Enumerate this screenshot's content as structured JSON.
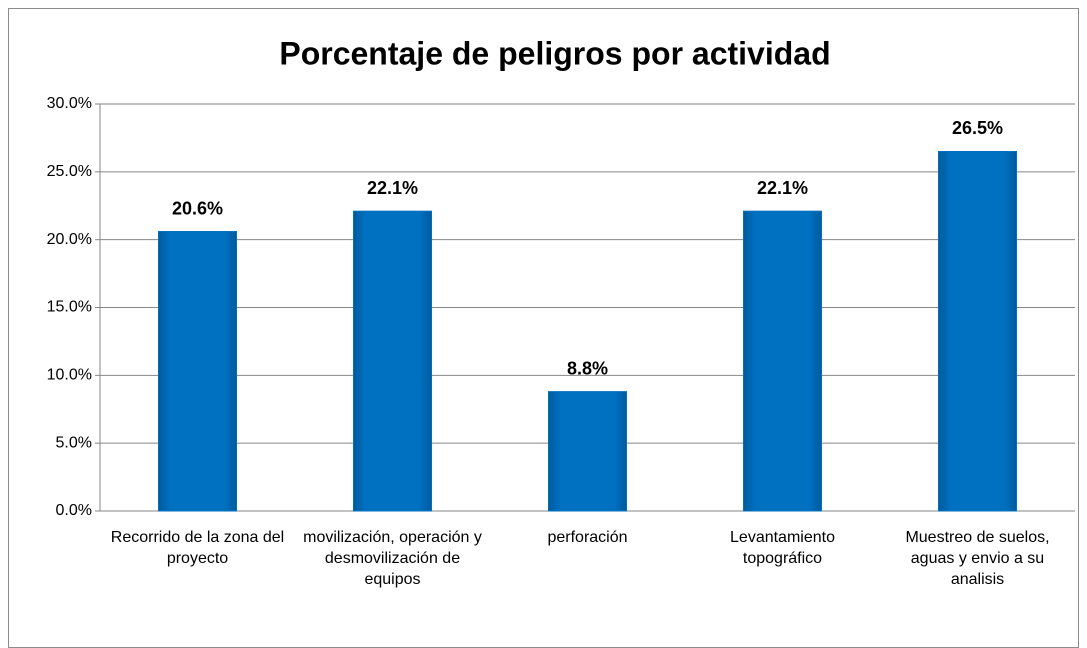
{
  "chart_data": {
    "type": "bar",
    "title": "Porcentaje de peligros por actividad",
    "categories": [
      "Recorrido de la zona del proyecto",
      "movilización, operación y desmovilización de equipos",
      "perforación",
      "Levantamiento topográfico",
      "Muestreo de suelos, aguas y envio a su analisis"
    ],
    "values": [
      20.6,
      22.1,
      8.8,
      22.1,
      26.5
    ],
    "value_labels": [
      "20.6%",
      "22.1%",
      "8.8%",
      "22.1%",
      "26.5%"
    ],
    "color": "#0070c0",
    "ylim": [
      0,
      30
    ],
    "yticks": [
      {
        "value": 0,
        "label": "0.0%"
      },
      {
        "value": 5,
        "label": "5.0%"
      },
      {
        "value": 10,
        "label": "10.0%"
      },
      {
        "value": 15,
        "label": "15.0%"
      },
      {
        "value": 20,
        "label": "20.0%"
      },
      {
        "value": 25,
        "label": "25.0%"
      },
      {
        "value": 30,
        "label": "30.0%"
      }
    ],
    "grid": true
  }
}
